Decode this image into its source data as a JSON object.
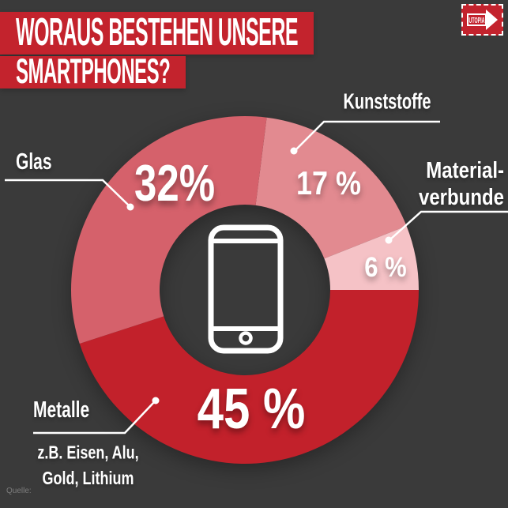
{
  "page": {
    "background": "#3a3a3a"
  },
  "header": {
    "title_line1": "WORAUS BESTEHEN UNSERE",
    "title_line2": "SMARTPHONES?",
    "banner_color": "#c3232d",
    "text_color": "#ffffff"
  },
  "logo": {
    "text": "UTOPIA",
    "color": "#c3232d"
  },
  "footer": {
    "source_label": "Quelle:"
  },
  "chart_data": {
    "type": "pie",
    "variant": "donut",
    "title": "Woraus bestehen unsere Smartphones?",
    "unit": "%",
    "start_angle_deg": 7.2,
    "center_icon": "smartphone",
    "legend_position": "around-chart",
    "segments": [
      {
        "label": "Kunststoffe",
        "value": 17,
        "display": "17 %",
        "color": "#e28a90"
      },
      {
        "label": "Materialverbunde",
        "value": 6,
        "display": "6 %",
        "color": "#f5c2c6",
        "label_lines": [
          "Material-",
          "verbunde"
        ]
      },
      {
        "label": "Metalle",
        "value": 45,
        "display": "45 %",
        "color": "#c2212b",
        "note_lines": [
          "z.B. Eisen, Alu,",
          "Gold, Lithium"
        ]
      },
      {
        "label": "Glas",
        "value": 32,
        "display": "32%",
        "color": "#d5616b"
      }
    ]
  }
}
